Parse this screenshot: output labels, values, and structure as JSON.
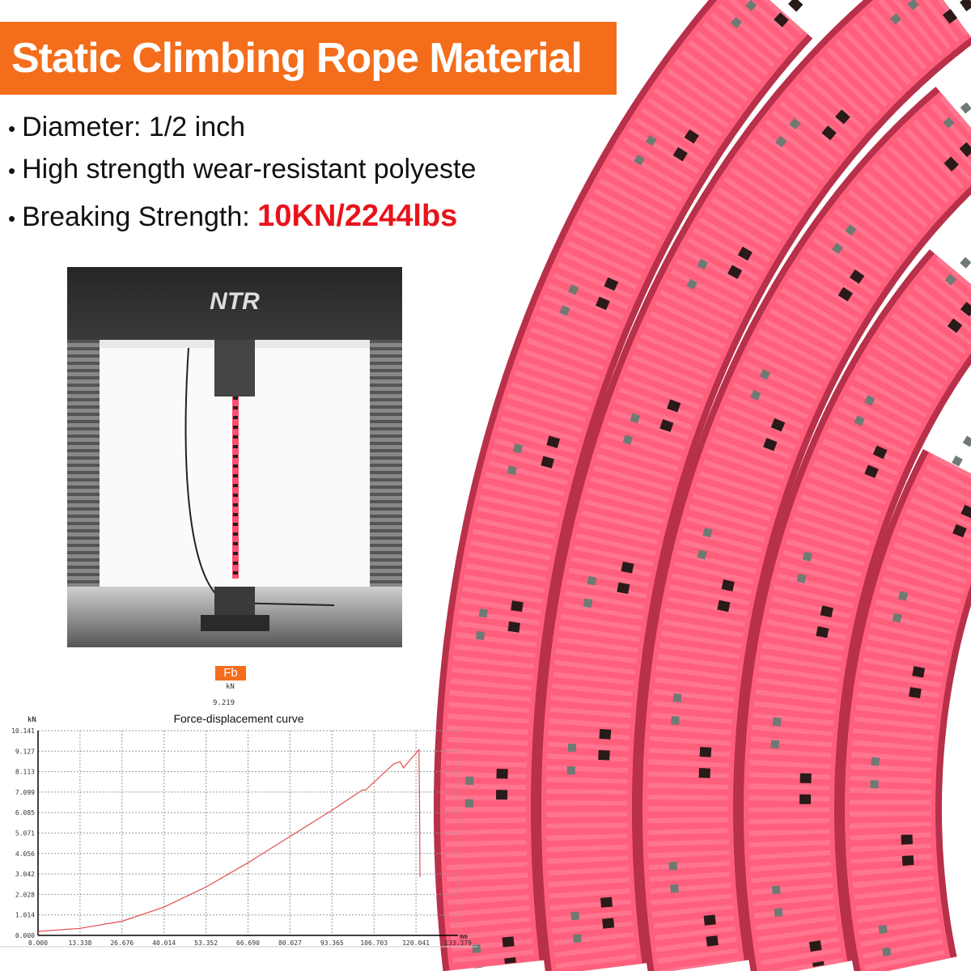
{
  "header": {
    "title": "Static Climbing Rope Material"
  },
  "bullets": [
    {
      "text": "Diameter: 1/2 inch"
    },
    {
      "text": "High strength wear-resistant polyeste"
    },
    {
      "text": "Breaking Strength: ",
      "highlight": "10KN/2244lbs"
    }
  ],
  "machine": {
    "logo": "NTR"
  },
  "readout": {
    "label": "Fb",
    "unit": "kN",
    "value": "9.219"
  },
  "colors": {
    "accent": "#f46d1b",
    "highlight": "#e8141b",
    "rope": "#ff5c7a",
    "curve": "#e05050"
  },
  "chart_data": {
    "type": "line",
    "title": "Force-displacement curve",
    "ylabel": "kN",
    "xlabel": "mm",
    "xlim": [
      0,
      133.379
    ],
    "ylim": [
      0,
      10.141
    ],
    "grid": true,
    "xticks": [
      "0.000",
      "13.338",
      "26.676",
      "40.014",
      "53.352",
      "66.690",
      "80.027",
      "93.365",
      "106.703",
      "120.041",
      "133.379"
    ],
    "yticks": [
      "0.000",
      "1.014",
      "2.028",
      "3.042",
      "4.056",
      "5.071",
      "6.085",
      "7.099",
      "8.113",
      "9.127",
      "10.141"
    ],
    "series": [
      {
        "x": [
          0,
          0.3,
          13.3,
          26.7,
          40,
          53.4,
          66.7,
          80,
          93.4,
          103,
          104,
          113,
          115,
          116,
          121,
          121.2,
          121.3
        ],
        "y": [
          0.1,
          0.2,
          0.35,
          0.7,
          1.4,
          2.4,
          3.6,
          4.9,
          6.2,
          7.2,
          7.2,
          8.5,
          8.6,
          8.3,
          9.2,
          5.9,
          2.9
        ]
      }
    ]
  }
}
